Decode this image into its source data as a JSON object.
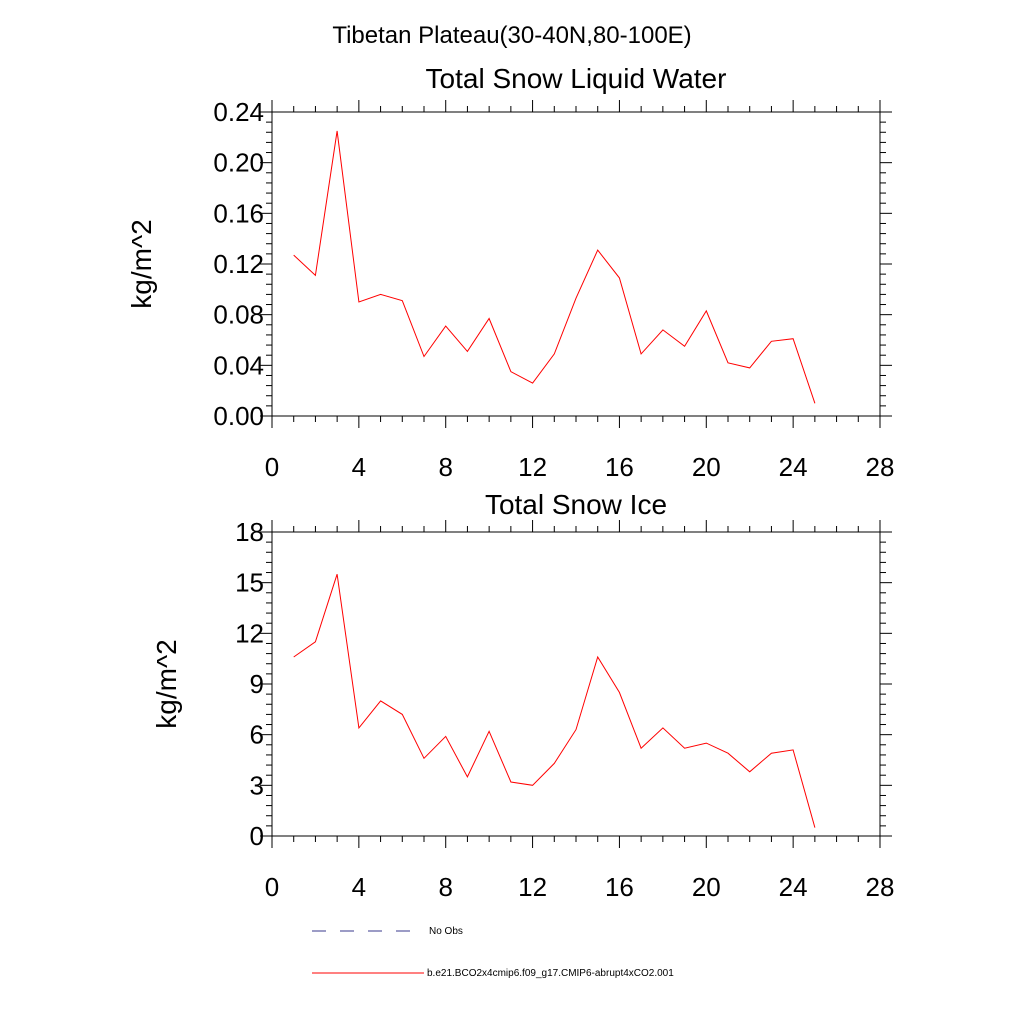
{
  "figure": {
    "title": "Tibetan Plateau(30-40N,80-100E)"
  },
  "chart_data": [
    {
      "type": "line",
      "title": "Total Snow Liquid Water",
      "xlabel": "",
      "ylabel": "kg/m^2",
      "xlim": [
        0,
        28
      ],
      "ylim": [
        0,
        0.24
      ],
      "xticks": [
        "0",
        "4",
        "8",
        "12",
        "16",
        "20",
        "24",
        "28"
      ],
      "yticks": [
        "0.00",
        "0.04",
        "0.08",
        "0.12",
        "0.16",
        "0.20",
        "0.24"
      ],
      "x": [
        1,
        2,
        3,
        4,
        5,
        6,
        7,
        8,
        9,
        10,
        11,
        12,
        13,
        14,
        15,
        16,
        17,
        18,
        19,
        20,
        21,
        22,
        23,
        24,
        25
      ],
      "series": [
        {
          "name": "b.e21.BCO2x4cmip6.f09_g17.CMIP6-abrupt4xCO2.001",
          "color": "#ff0000",
          "values": [
            0.127,
            0.111,
            0.225,
            0.09,
            0.096,
            0.091,
            0.047,
            0.071,
            0.051,
            0.077,
            0.035,
            0.026,
            0.049,
            0.093,
            0.131,
            0.109,
            0.049,
            0.068,
            0.055,
            0.083,
            0.042,
            0.038,
            0.059,
            0.061,
            0.01
          ]
        }
      ]
    },
    {
      "type": "line",
      "title": "Total Snow Ice",
      "xlabel": "",
      "ylabel": "kg/m^2",
      "xlim": [
        0,
        28
      ],
      "ylim": [
        0,
        18
      ],
      "xticks": [
        "0",
        "4",
        "8",
        "12",
        "16",
        "20",
        "24",
        "28"
      ],
      "yticks": [
        "0",
        "3",
        "6",
        "9",
        "12",
        "15",
        "18"
      ],
      "x": [
        1,
        2,
        3,
        4,
        5,
        6,
        7,
        8,
        9,
        10,
        11,
        12,
        13,
        14,
        15,
        16,
        17,
        18,
        19,
        20,
        21,
        22,
        23,
        24,
        25
      ],
      "series": [
        {
          "name": "b.e21.BCO2x4cmip6.f09_g17.CMIP6-abrupt4xCO2.001",
          "color": "#ff0000",
          "values": [
            10.6,
            11.5,
            15.5,
            6.4,
            8.0,
            7.2,
            4.6,
            5.9,
            3.5,
            6.2,
            3.2,
            3.0,
            4.3,
            6.3,
            10.6,
            8.5,
            5.2,
            6.4,
            5.2,
            5.5,
            4.9,
            3.8,
            4.9,
            5.1,
            0.5
          ]
        }
      ]
    }
  ],
  "legend": {
    "items": [
      {
        "label": "No Obs",
        "style": "dashed",
        "color": "#3a3a8c"
      },
      {
        "label": "b.e21.BCO2x4cmip6.f09_g17.CMIP6-abrupt4xCO2.001",
        "style": "solid",
        "color": "#ff0000"
      }
    ]
  }
}
